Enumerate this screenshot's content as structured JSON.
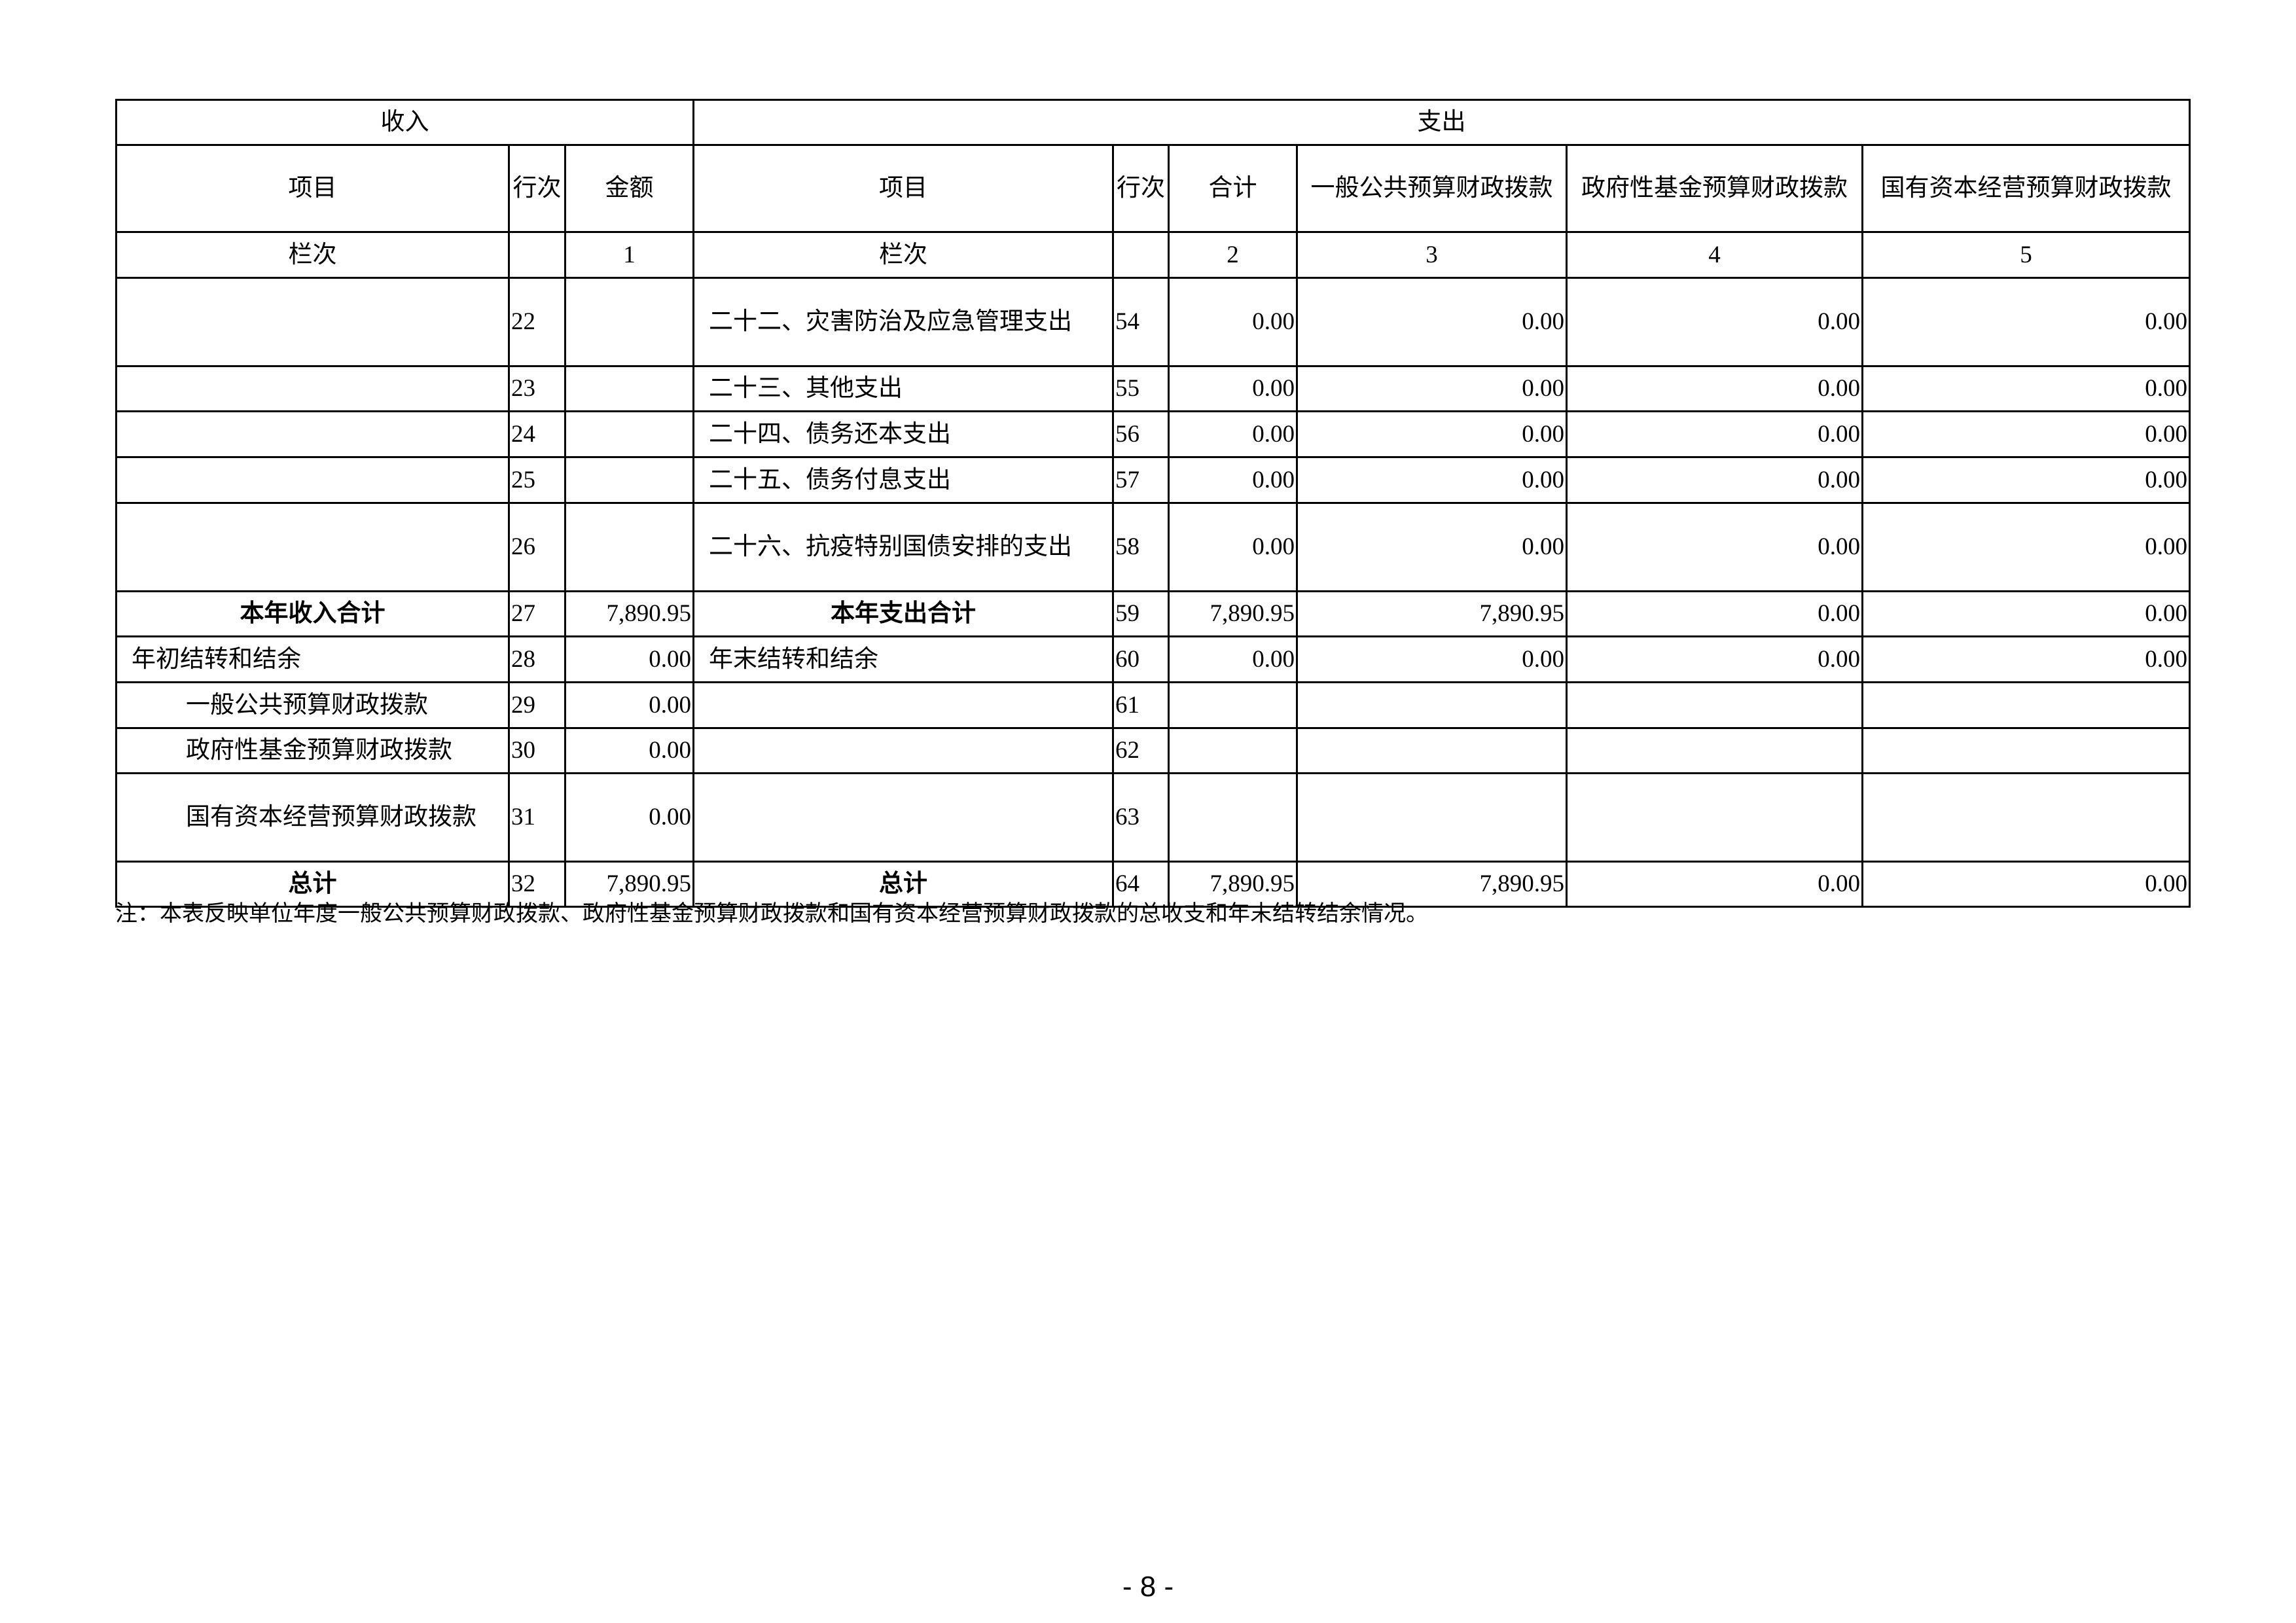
{
  "header": {
    "income": "收入",
    "expense": "支出",
    "cols": [
      "项目",
      "行次",
      "金额",
      "项目",
      "行次",
      "合计",
      "一般公共预算财政拨款",
      "政府性基金预算财政拨款",
      "国有资本经营预算财政拨款"
    ],
    "lanci": [
      "栏次",
      "",
      "1",
      "栏次",
      "",
      "2",
      "3",
      "4",
      "5"
    ]
  },
  "rows": [
    {
      "in_item": "",
      "in_no": "22",
      "in_amt": "",
      "out_item": "二十二、灾害防治及应急管理支出",
      "out_no": "54",
      "total": "0.00",
      "c3": "0.00",
      "c4": "0.00",
      "c5": "0.00"
    },
    {
      "in_item": "",
      "in_no": "23",
      "in_amt": "",
      "out_item": "二十三、其他支出",
      "out_no": "55",
      "total": "0.00",
      "c3": "0.00",
      "c4": "0.00",
      "c5": "0.00"
    },
    {
      "in_item": "",
      "in_no": "24",
      "in_amt": "",
      "out_item": "二十四、债务还本支出",
      "out_no": "56",
      "total": "0.00",
      "c3": "0.00",
      "c4": "0.00",
      "c5": "0.00"
    },
    {
      "in_item": "",
      "in_no": "25",
      "in_amt": "",
      "out_item": "二十五、债务付息支出",
      "out_no": "57",
      "total": "0.00",
      "c3": "0.00",
      "c4": "0.00",
      "c5": "0.00"
    },
    {
      "in_item": "",
      "in_no": "26",
      "in_amt": "",
      "out_item": "二十六、抗疫特别国债安排的支出",
      "out_no": "58",
      "total": "0.00",
      "c3": "0.00",
      "c4": "0.00",
      "c5": "0.00"
    },
    {
      "in_item": "本年收入合计",
      "in_no": "27",
      "in_amt": "7,890.95",
      "out_item": "本年支出合计",
      "out_no": "59",
      "total": "7,890.95",
      "c3": "7,890.95",
      "c4": "0.00",
      "c5": "0.00"
    },
    {
      "in_item": "年初结转和结余",
      "in_no": "28",
      "in_amt": "0.00",
      "out_item": "年末结转和结余",
      "out_no": "60",
      "total": "0.00",
      "c3": "0.00",
      "c4": "0.00",
      "c5": "0.00"
    },
    {
      "in_item": "一般公共预算财政拨款",
      "in_no": "29",
      "in_amt": "0.00",
      "out_item": "",
      "out_no": "61",
      "total": "",
      "c3": "",
      "c4": "",
      "c5": ""
    },
    {
      "in_item": "政府性基金预算财政拨款",
      "in_no": "30",
      "in_amt": "0.00",
      "out_item": "",
      "out_no": "62",
      "total": "",
      "c3": "",
      "c4": "",
      "c5": ""
    },
    {
      "in_item": "国有资本经营预算财政拨款",
      "in_no": "31",
      "in_amt": "0.00",
      "out_item": "",
      "out_no": "63",
      "total": "",
      "c3": "",
      "c4": "",
      "c5": ""
    },
    {
      "in_item": "总计",
      "in_no": "32",
      "in_amt": "7,890.95",
      "out_item": "总计",
      "out_no": "64",
      "total": "7,890.95",
      "c3": "7,890.95",
      "c4": "0.00",
      "c5": "0.00"
    }
  ],
  "note": "注：本表反映单位年度一般公共预算财政拨款、政府性基金预算财政拨款和国有资本经营预算财政拨款的总收支和年末结转结余情况。",
  "page_number": "- 8 -"
}
